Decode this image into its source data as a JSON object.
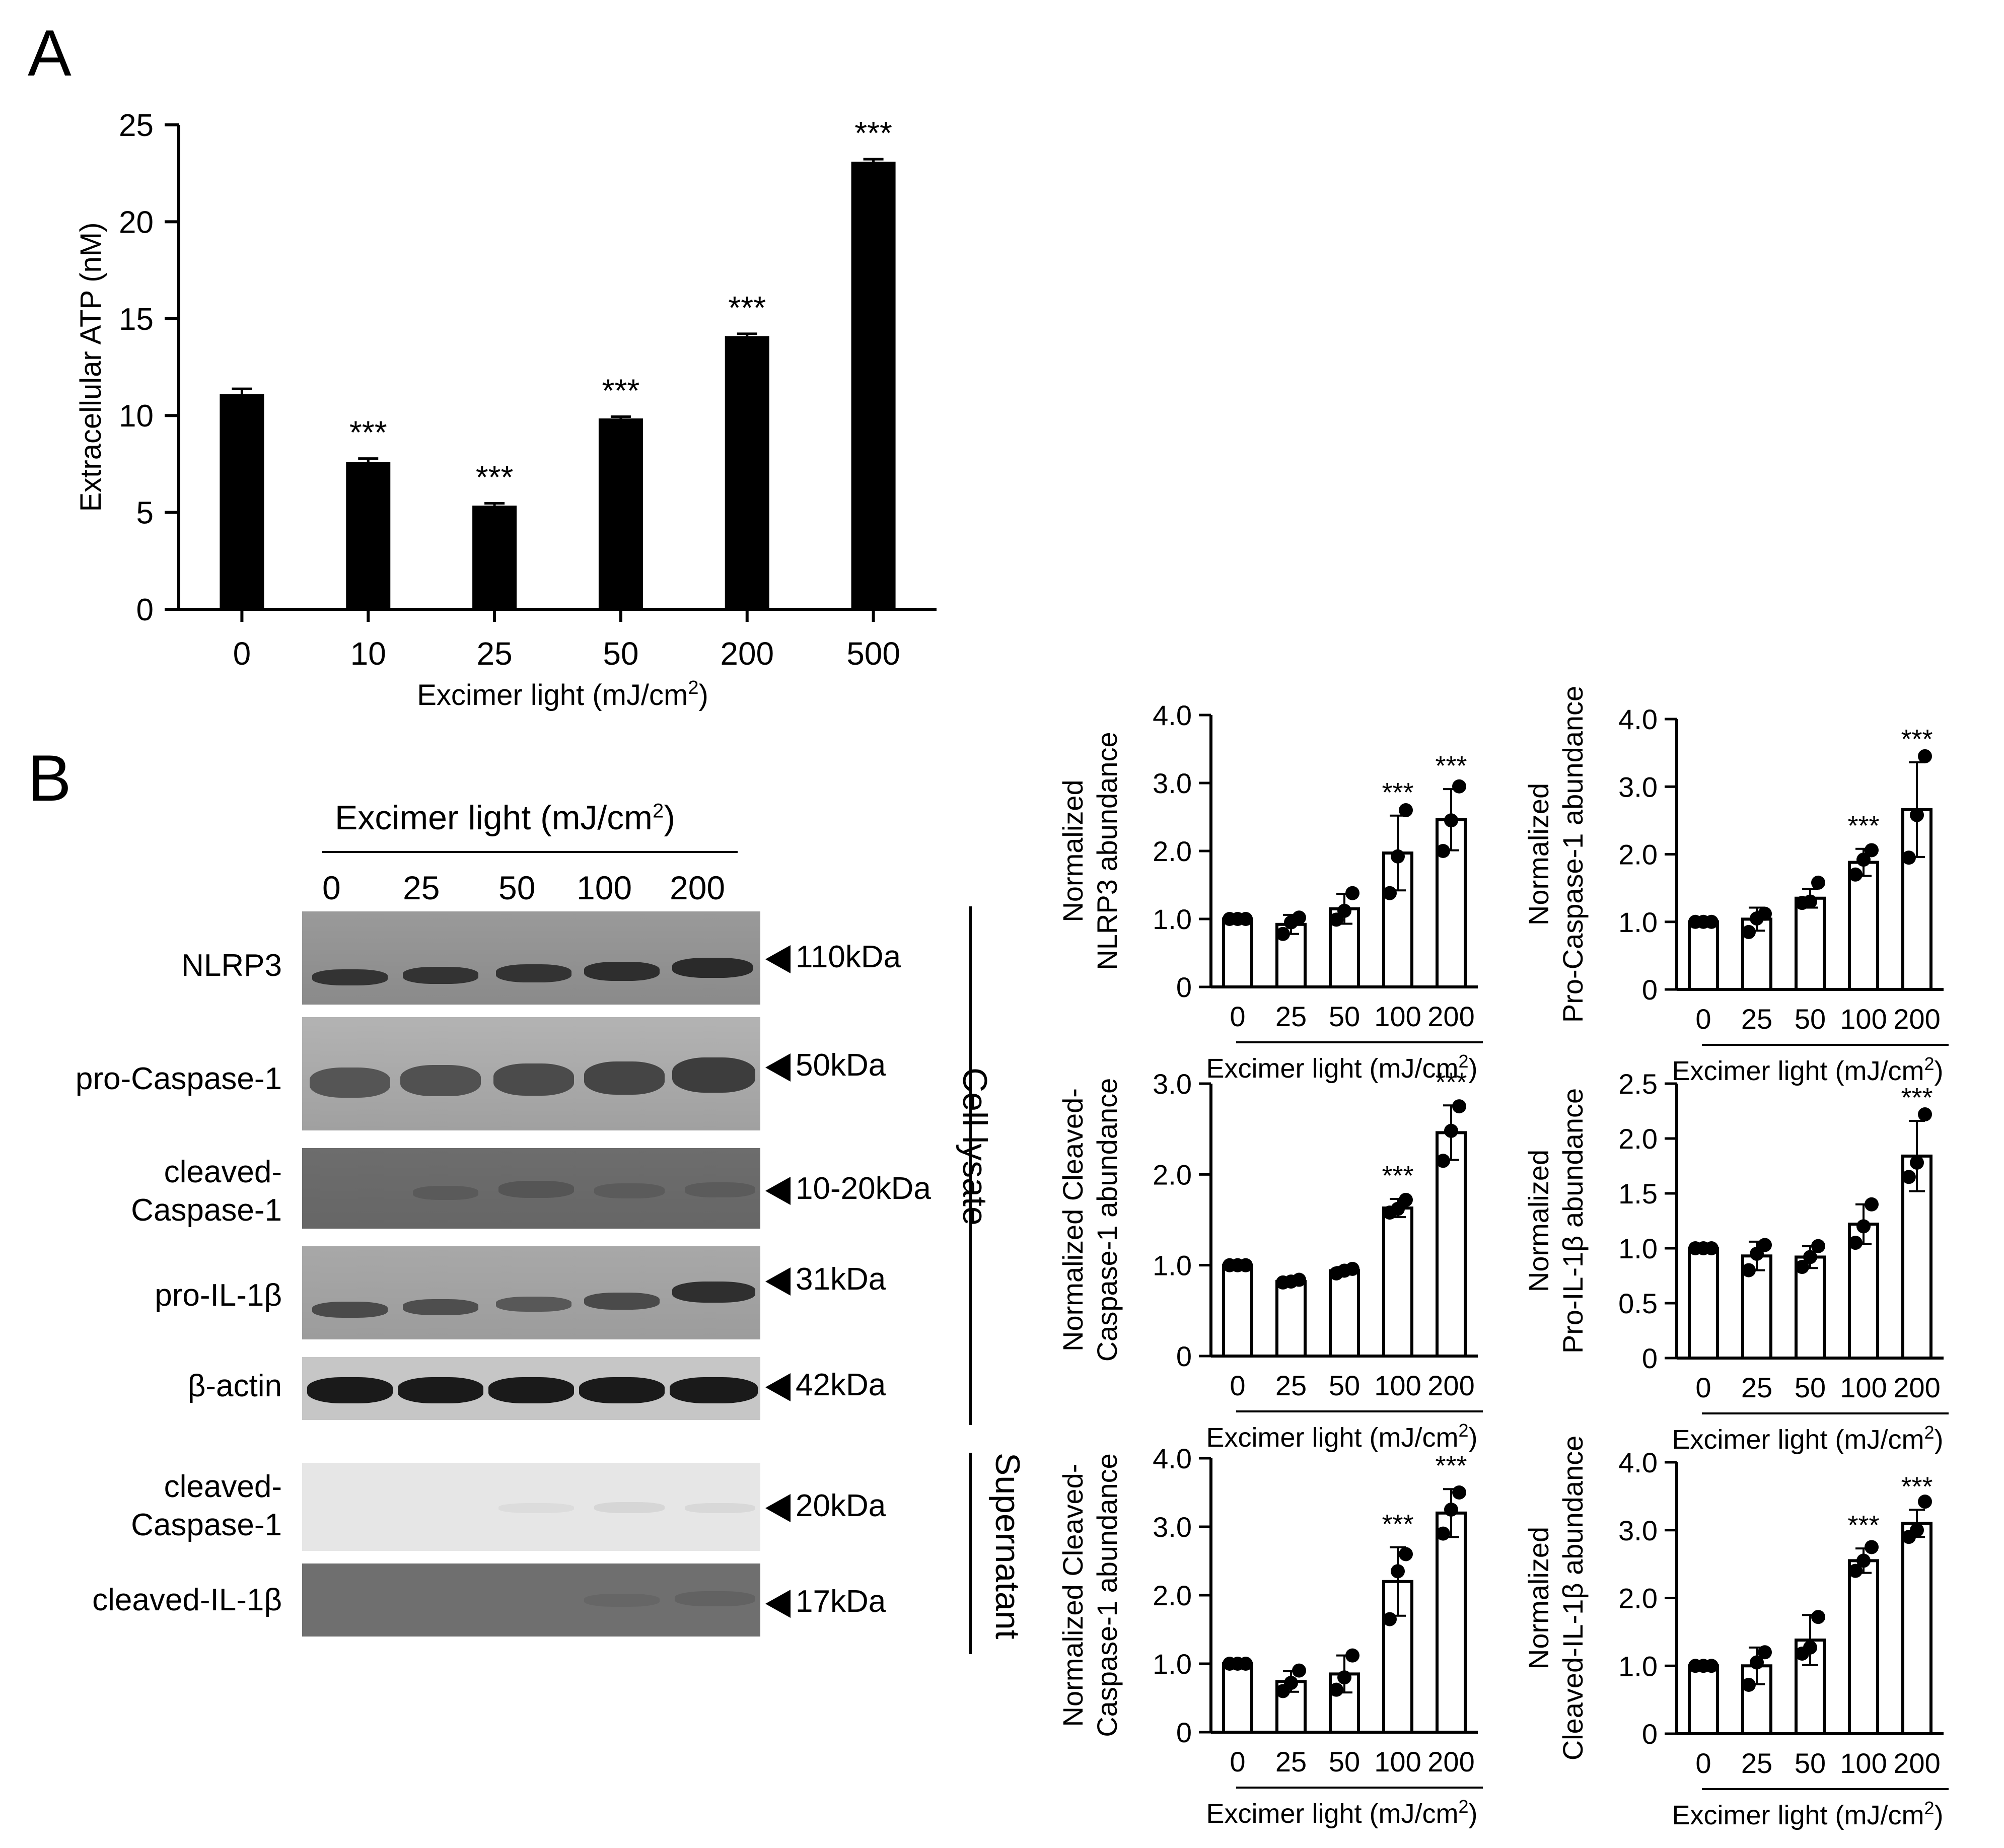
{
  "panel_a": {
    "letter": "A",
    "stat_mark": "***",
    "chart_data": {
      "type": "bar",
      "title": "",
      "xlabel": "Excimer light (mJ/cm2)",
      "xlabel_main": "Excimer light (mJ/cm",
      "xlabel_sup": "2",
      "xlabel_tail": ")",
      "ylabel": "Extracellular ATP (nM)",
      "categories": [
        "0",
        "10",
        "25",
        "50",
        "200",
        "500"
      ],
      "values": [
        11.1,
        7.6,
        5.35,
        9.85,
        14.1,
        23.1
      ],
      "errors": [
        0.28,
        0.18,
        0.12,
        0.09,
        0.12,
        0.13
      ],
      "significance": [
        "",
        "***",
        "***",
        "***",
        "***",
        "***"
      ],
      "ylim": [
        0,
        25
      ],
      "yticks": [
        0,
        5,
        10,
        15,
        20,
        25
      ]
    }
  },
  "panel_b": {
    "letter": "B",
    "blot": {
      "header": "Excimer light (mJ/cm",
      "header_sup": "2",
      "header_tail": ")",
      "lanes": [
        "0",
        "25",
        "50",
        "100",
        "200"
      ],
      "rows": [
        {
          "label": "NLRP3",
          "size": "110kDa"
        },
        {
          "label": "pro-Caspase-1",
          "size": "50kDa"
        },
        {
          "label_line1": "cleaved-",
          "label_line2": "Caspase-1",
          "size": "10-20kDa"
        },
        {
          "label": "pro-IL-1β",
          "size": "31kDa"
        },
        {
          "label": "β-actin",
          "size": "42kDa"
        },
        {
          "label_line1": "cleaved-",
          "label_line2": "Caspase-1",
          "size": "20kDa"
        },
        {
          "label": "cleaved-IL-1β",
          "size": "17kDa"
        }
      ],
      "group_cell": "Cell lysate",
      "group_sup": "Supernatant"
    },
    "chart_data": [
      {
        "type": "bar",
        "ylabel_lines": [
          "Normalized",
          "NLRP3 abundance"
        ],
        "xlabel": "Excimer light (mJ/cm2)",
        "categories": [
          "0",
          "25",
          "50",
          "100",
          "200"
        ],
        "values": [
          1.0,
          0.92,
          1.15,
          1.97,
          2.46
        ],
        "errors": [
          0.03,
          0.14,
          0.22,
          0.55,
          0.45
        ],
        "points": [
          [
            1.0,
            1.0,
            1.0
          ],
          [
            0.78,
            0.95,
            1.02
          ],
          [
            0.99,
            1.12,
            1.38
          ],
          [
            1.38,
            1.92,
            2.6
          ],
          [
            2.0,
            2.45,
            2.95
          ]
        ],
        "significance": [
          "",
          "",
          "",
          "***",
          "***"
        ],
        "ylim": [
          0,
          4.0
        ],
        "yticks": [
          "0",
          "1.0",
          "2.0",
          "3.0",
          "4.0"
        ]
      },
      {
        "type": "bar",
        "ylabel_lines": [
          "Normalized",
          "Pro-Caspase-1 abundance"
        ],
        "xlabel": "Excimer light (mJ/cm2)",
        "categories": [
          "0",
          "25",
          "50",
          "100",
          "200"
        ],
        "values": [
          1.0,
          1.04,
          1.35,
          1.88,
          2.66
        ],
        "errors": [
          0.02,
          0.17,
          0.14,
          0.2,
          0.7
        ],
        "points": [
          [
            1.0,
            1.0,
            1.0
          ],
          [
            0.85,
            1.05,
            1.12
          ],
          [
            1.28,
            1.3,
            1.58
          ],
          [
            1.7,
            1.92,
            2.06
          ],
          [
            1.95,
            2.58,
            3.45
          ]
        ],
        "significance": [
          "",
          "",
          "",
          "***",
          "***"
        ],
        "ylim": [
          0,
          4.0
        ],
        "yticks": [
          "0",
          "1.0",
          "2.0",
          "3.0",
          "4.0"
        ]
      },
      {
        "type": "bar",
        "ylabel_lines": [
          "Normalized Cleaved-",
          "Caspase-1 abundance"
        ],
        "xlabel": "Excimer light (mJ/cm2)",
        "categories": [
          "0",
          "25",
          "50",
          "100",
          "200"
        ],
        "values": [
          1.0,
          0.82,
          0.94,
          1.63,
          2.46
        ],
        "errors": [
          0.02,
          0.03,
          0.04,
          0.1,
          0.3
        ],
        "points": [
          [
            1.0,
            1.0,
            1.0
          ],
          [
            0.81,
            0.82,
            0.84
          ],
          [
            0.91,
            0.94,
            0.96
          ],
          [
            1.58,
            1.62,
            1.72
          ],
          [
            2.15,
            2.48,
            2.75
          ]
        ],
        "significance": [
          "",
          "",
          "",
          "***",
          "***"
        ],
        "ylim": [
          0,
          3.0
        ],
        "yticks": [
          "0",
          "1.0",
          "2.0",
          "3.0"
        ]
      },
      {
        "type": "bar",
        "ylabel_lines": [
          "Normalized",
          "Pro-IL-1β abundance"
        ],
        "xlabel": "Excimer light (mJ/cm2)",
        "categories": [
          "0",
          "25",
          "50",
          "100",
          "200"
        ],
        "values": [
          1.0,
          0.93,
          0.92,
          1.22,
          1.84
        ],
        "errors": [
          0.02,
          0.13,
          0.1,
          0.18,
          0.32
        ],
        "points": [
          [
            1.0,
            1.0,
            1.0
          ],
          [
            0.8,
            0.95,
            1.03
          ],
          [
            0.83,
            0.92,
            1.02
          ],
          [
            1.05,
            1.2,
            1.4
          ],
          [
            1.65,
            1.78,
            2.22
          ]
        ],
        "significance": [
          "",
          "",
          "",
          "",
          "***"
        ],
        "ylim": [
          0,
          2.5
        ],
        "yticks": [
          "0",
          "0.5",
          "1.0",
          "1.5",
          "2.0",
          "2.5"
        ]
      },
      {
        "type": "bar",
        "ylabel_lines": [
          "Normalized Cleaved-",
          "Caspase-1 abundance"
        ],
        "xlabel": "Excimer light (mJ/cm2)",
        "categories": [
          "0",
          "25",
          "50",
          "100",
          "200"
        ],
        "values": [
          1.0,
          0.74,
          0.85,
          2.2,
          3.2
        ],
        "errors": [
          0.02,
          0.15,
          0.27,
          0.5,
          0.35
        ],
        "points": [
          [
            1.0,
            1.0,
            1.0
          ],
          [
            0.6,
            0.72,
            0.9
          ],
          [
            0.62,
            0.8,
            1.12
          ],
          [
            1.65,
            2.35,
            2.6
          ],
          [
            2.9,
            3.25,
            3.5
          ]
        ],
        "significance": [
          "",
          "",
          "",
          "***",
          "***"
        ],
        "ylim": [
          0,
          4.0
        ],
        "yticks": [
          "0",
          "1.0",
          "2.0",
          "3.0",
          "4.0"
        ]
      },
      {
        "type": "bar",
        "ylabel_lines": [
          "Normalized",
          "Cleaved-IL-1β abundance"
        ],
        "xlabel": "Excimer light (mJ/cm2)",
        "categories": [
          "0",
          "25",
          "50",
          "100",
          "200"
        ],
        "values": [
          1.0,
          1.0,
          1.38,
          2.55,
          3.1
        ],
        "errors": [
          0.02,
          0.27,
          0.37,
          0.18,
          0.2
        ],
        "points": [
          [
            1.0,
            1.0,
            1.0
          ],
          [
            0.72,
            1.05,
            1.2
          ],
          [
            1.18,
            1.27,
            1.72
          ],
          [
            2.4,
            2.55,
            2.75
          ],
          [
            2.9,
            3.0,
            3.42
          ]
        ],
        "significance": [
          "",
          "",
          "",
          "***",
          "***"
        ],
        "ylim": [
          0,
          4.0
        ],
        "yticks": [
          "0",
          "1.0",
          "2.0",
          "3.0",
          "4.0"
        ]
      }
    ]
  },
  "colors": {
    "bar_a": "#000000",
    "bar_b": "#ffffff",
    "ink": "#000000",
    "blot_bg": "#8c8c8c",
    "band": "#2e2e2e"
  }
}
